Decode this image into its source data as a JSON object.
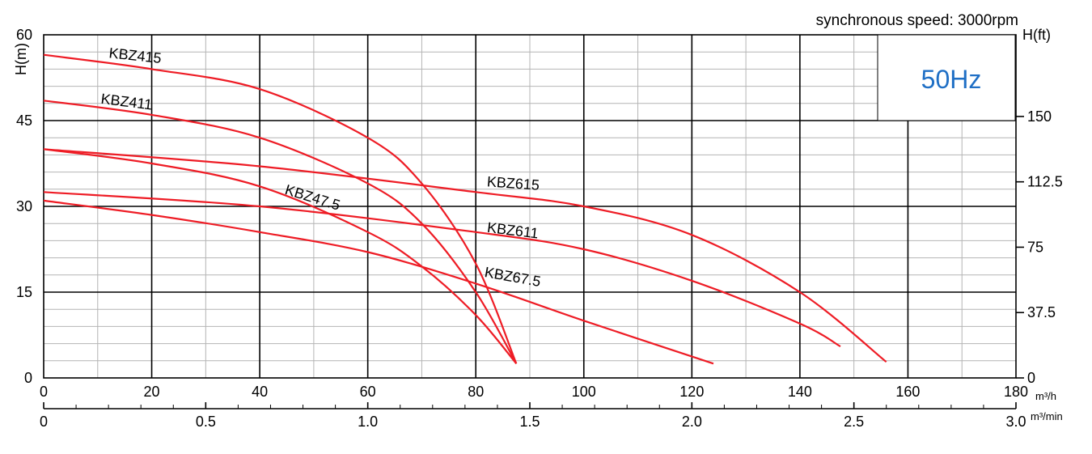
{
  "chart_data": {
    "type": "line",
    "title": "synchronous speed: 3000rpm",
    "frequency_label": "50Hz",
    "colors": {
      "curve": "#ee1c25",
      "frequency": "#1f6fc5",
      "grid_major": "#000000",
      "grid_minor": "#b4b4b4"
    },
    "y_left": {
      "label": "H(m)",
      "ticks": [
        "0",
        "15",
        "30",
        "45",
        "60"
      ],
      "ylim": [
        0,
        60
      ]
    },
    "y_right": {
      "label": "H(ft)",
      "ticks": [
        "0",
        "37.5",
        "75",
        "112.5",
        "150"
      ],
      "max_ft": 196.85
    },
    "x_primary": {
      "unit": "m³/h",
      "ticks": [
        "0",
        "20",
        "40",
        "60",
        "80",
        "100",
        "120",
        "140",
        "160",
        "180"
      ],
      "xlim": [
        0,
        180
      ]
    },
    "x_secondary": {
      "unit": "m³/min",
      "ticks": [
        "0",
        "0.5",
        "1.0",
        "1.5",
        "2.0",
        "2.5",
        "3.0"
      ],
      "xlim": [
        0,
        3.0
      ]
    },
    "series": [
      {
        "name": "KBZ415",
        "x": [
          0,
          20,
          40,
          60,
          70,
          80,
          87.5
        ],
        "y": [
          56.5,
          54.0,
          50.5,
          42.0,
          34.0,
          20.0,
          2.5
        ]
      },
      {
        "name": "KBZ411",
        "x": [
          0,
          20,
          40,
          60,
          70,
          80,
          87.5
        ],
        "y": [
          48.5,
          46.0,
          42.0,
          34.0,
          27.0,
          15.0,
          2.5
        ]
      },
      {
        "name": "KBZ47.5",
        "x": [
          0,
          20,
          40,
          60,
          70,
          80,
          87.5
        ],
        "y": [
          40.0,
          37.5,
          33.5,
          25.5,
          19.5,
          11.0,
          2.5
        ]
      },
      {
        "name": "KBZ615",
        "x": [
          0,
          40,
          80,
          100,
          120,
          140,
          156
        ],
        "y": [
          40.0,
          37.0,
          32.5,
          30.0,
          25.0,
          15.0,
          2.8
        ]
      },
      {
        "name": "KBZ611",
        "x": [
          0,
          40,
          80,
          100,
          120,
          140,
          147.5
        ],
        "y": [
          32.5,
          30.0,
          25.5,
          22.5,
          17.0,
          9.5,
          5.5
        ]
      },
      {
        "name": "KBZ67.5",
        "x": [
          0,
          20,
          40,
          60,
          80,
          100,
          124
        ],
        "y": [
          31.0,
          28.5,
          25.5,
          22.0,
          16.5,
          10.0,
          2.5
        ]
      }
    ],
    "labels": [
      {
        "text": "KBZ415",
        "x": 12,
        "y": 56.0,
        "rotate": 6
      },
      {
        "text": "KBZ411",
        "x": 10.5,
        "y": 48.0,
        "rotate": 7
      },
      {
        "text": "KBZ47.5",
        "x": 44.5,
        "y": 32.2,
        "rotate": 17
      },
      {
        "text": "KBZ615",
        "x": 82,
        "y": 33.5,
        "rotate": 4
      },
      {
        "text": "KBZ611",
        "x": 82,
        "y": 25.5,
        "rotate": 7
      },
      {
        "text": "KBZ67.5",
        "x": 81.5,
        "y": 17.7,
        "rotate": 10
      }
    ]
  }
}
